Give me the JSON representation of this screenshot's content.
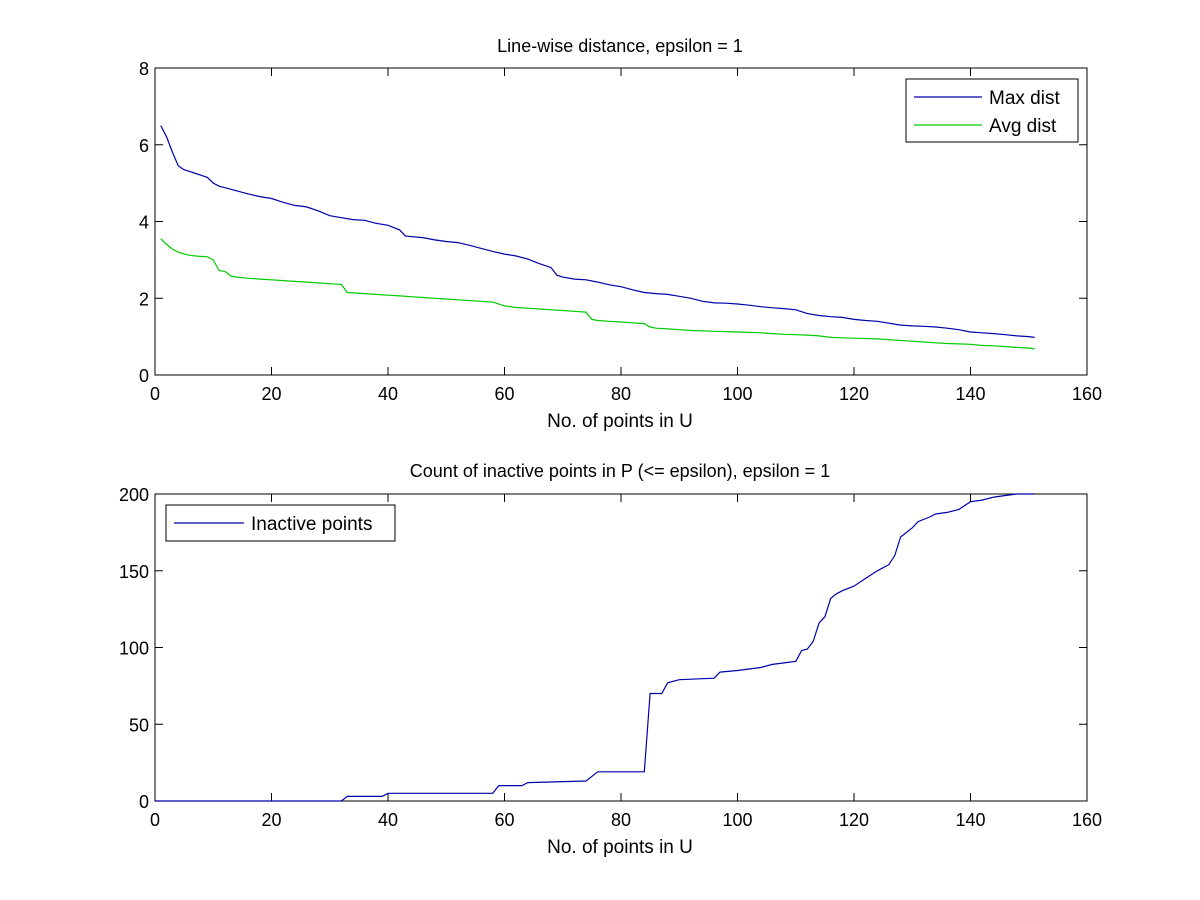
{
  "chart_data": [
    {
      "type": "line",
      "title": "Line-wise distance, epsilon = 1",
      "xlabel": "No. of points in U",
      "ylabel": "",
      "xlim": [
        0,
        160
      ],
      "ylim": [
        0,
        8
      ],
      "xticks": [
        "0",
        "20",
        "40",
        "60",
        "80",
        "100",
        "120",
        "140",
        "160"
      ],
      "yticks": [
        "0",
        "2",
        "4",
        "6",
        "8"
      ],
      "legend_position": "top-right",
      "grid": false,
      "series": [
        {
          "name": "Max dist",
          "color": "#0000aa",
          "points": [
            [
              1,
              6.5
            ],
            [
              2,
              6.2
            ],
            [
              3,
              5.8
            ],
            [
              4,
              5.45
            ],
            [
              5,
              5.35
            ],
            [
              6,
              5.3
            ],
            [
              7,
              5.25
            ],
            [
              8,
              5.2
            ],
            [
              9,
              5.15
            ],
            [
              10,
              5.0
            ],
            [
              11,
              4.92
            ],
            [
              12,
              4.88
            ],
            [
              14,
              4.8
            ],
            [
              16,
              4.72
            ],
            [
              18,
              4.65
            ],
            [
              20,
              4.6
            ],
            [
              22,
              4.5
            ],
            [
              24,
              4.42
            ],
            [
              26,
              4.38
            ],
            [
              28,
              4.28
            ],
            [
              30,
              4.15
            ],
            [
              32,
              4.1
            ],
            [
              34,
              4.05
            ],
            [
              36,
              4.03
            ],
            [
              38,
              3.95
            ],
            [
              40,
              3.9
            ],
            [
              42,
              3.78
            ],
            [
              43,
              3.62
            ],
            [
              46,
              3.58
            ],
            [
              48,
              3.52
            ],
            [
              50,
              3.48
            ],
            [
              52,
              3.45
            ],
            [
              54,
              3.38
            ],
            [
              56,
              3.3
            ],
            [
              58,
              3.22
            ],
            [
              60,
              3.15
            ],
            [
              62,
              3.1
            ],
            [
              64,
              3.02
            ],
            [
              66,
              2.9
            ],
            [
              68,
              2.8
            ],
            [
              69,
              2.6
            ],
            [
              70,
              2.55
            ],
            [
              72,
              2.5
            ],
            [
              74,
              2.48
            ],
            [
              76,
              2.42
            ],
            [
              78,
              2.35
            ],
            [
              80,
              2.3
            ],
            [
              82,
              2.22
            ],
            [
              84,
              2.15
            ],
            [
              86,
              2.12
            ],
            [
              88,
              2.1
            ],
            [
              90,
              2.05
            ],
            [
              92,
              2.0
            ],
            [
              94,
              1.92
            ],
            [
              96,
              1.88
            ],
            [
              98,
              1.87
            ],
            [
              100,
              1.85
            ],
            [
              102,
              1.82
            ],
            [
              104,
              1.78
            ],
            [
              106,
              1.75
            ],
            [
              108,
              1.73
            ],
            [
              110,
              1.7
            ],
            [
              112,
              1.6
            ],
            [
              114,
              1.55
            ],
            [
              116,
              1.52
            ],
            [
              118,
              1.5
            ],
            [
              120,
              1.45
            ],
            [
              122,
              1.42
            ],
            [
              124,
              1.4
            ],
            [
              126,
              1.35
            ],
            [
              128,
              1.3
            ],
            [
              130,
              1.28
            ],
            [
              132,
              1.27
            ],
            [
              134,
              1.25
            ],
            [
              136,
              1.22
            ],
            [
              138,
              1.18
            ],
            [
              140,
              1.12
            ],
            [
              142,
              1.1
            ],
            [
              144,
              1.08
            ],
            [
              146,
              1.05
            ],
            [
              148,
              1.02
            ],
            [
              150,
              1.0
            ],
            [
              151,
              0.98
            ]
          ]
        },
        {
          "name": "Avg dist",
          "color": "#00cc00",
          "points": [
            [
              1,
              3.55
            ],
            [
              2,
              3.4
            ],
            [
              3,
              3.28
            ],
            [
              4,
              3.2
            ],
            [
              5,
              3.15
            ],
            [
              6,
              3.12
            ],
            [
              7,
              3.1
            ],
            [
              9,
              3.08
            ],
            [
              10,
              3.0
            ],
            [
              11,
              2.72
            ],
            [
              12,
              2.7
            ],
            [
              13,
              2.58
            ],
            [
              14,
              2.55
            ],
            [
              16,
              2.52
            ],
            [
              18,
              2.5
            ],
            [
              20,
              2.48
            ],
            [
              22,
              2.46
            ],
            [
              24,
              2.44
            ],
            [
              26,
              2.42
            ],
            [
              28,
              2.4
            ],
            [
              30,
              2.38
            ],
            [
              32,
              2.36
            ],
            [
              33,
              2.15
            ],
            [
              34,
              2.14
            ],
            [
              36,
              2.12
            ],
            [
              38,
              2.1
            ],
            [
              40,
              2.08
            ],
            [
              42,
              2.06
            ],
            [
              44,
              2.04
            ],
            [
              46,
              2.02
            ],
            [
              48,
              2.0
            ],
            [
              50,
              1.98
            ],
            [
              52,
              1.96
            ],
            [
              54,
              1.94
            ],
            [
              56,
              1.92
            ],
            [
              58,
              1.9
            ],
            [
              60,
              1.8
            ],
            [
              62,
              1.76
            ],
            [
              64,
              1.74
            ],
            [
              66,
              1.72
            ],
            [
              68,
              1.7
            ],
            [
              70,
              1.68
            ],
            [
              72,
              1.66
            ],
            [
              74,
              1.64
            ],
            [
              75,
              1.45
            ],
            [
              76,
              1.42
            ],
            [
              78,
              1.4
            ],
            [
              80,
              1.38
            ],
            [
              82,
              1.36
            ],
            [
              84,
              1.34
            ],
            [
              85,
              1.25
            ],
            [
              86,
              1.22
            ],
            [
              88,
              1.2
            ],
            [
              90,
              1.18
            ],
            [
              92,
              1.16
            ],
            [
              94,
              1.15
            ],
            [
              96,
              1.14
            ],
            [
              98,
              1.13
            ],
            [
              100,
              1.12
            ],
            [
              102,
              1.11
            ],
            [
              104,
              1.1
            ],
            [
              106,
              1.08
            ],
            [
              108,
              1.06
            ],
            [
              110,
              1.05
            ],
            [
              112,
              1.04
            ],
            [
              114,
              1.02
            ],
            [
              116,
              0.98
            ],
            [
              118,
              0.97
            ],
            [
              120,
              0.96
            ],
            [
              122,
              0.95
            ],
            [
              124,
              0.94
            ],
            [
              126,
              0.92
            ],
            [
              128,
              0.9
            ],
            [
              130,
              0.88
            ],
            [
              132,
              0.86
            ],
            [
              134,
              0.84
            ],
            [
              136,
              0.82
            ],
            [
              138,
              0.81
            ],
            [
              140,
              0.8
            ],
            [
              142,
              0.77
            ],
            [
              144,
              0.76
            ],
            [
              146,
              0.74
            ],
            [
              148,
              0.72
            ],
            [
              150,
              0.7
            ],
            [
              151,
              0.68
            ]
          ]
        }
      ]
    },
    {
      "type": "line",
      "title": "Count of inactive points in P (<= epsilon), epsilon = 1",
      "xlabel": "No. of points in U",
      "ylabel": "",
      "xlim": [
        0,
        160
      ],
      "ylim": [
        0,
        200
      ],
      "xticks": [
        "0",
        "20",
        "40",
        "60",
        "80",
        "100",
        "120",
        "140",
        "160"
      ],
      "yticks": [
        "0",
        "50",
        "100",
        "150",
        "200"
      ],
      "legend_position": "top-left",
      "grid": false,
      "series": [
        {
          "name": "Inactive points",
          "color": "#0000aa",
          "points": [
            [
              0,
              0
            ],
            [
              32,
              0
            ],
            [
              33,
              3
            ],
            [
              39,
              3
            ],
            [
              40,
              5
            ],
            [
              58,
              5
            ],
            [
              59,
              10
            ],
            [
              63,
              10
            ],
            [
              64,
              12
            ],
            [
              74,
              13
            ],
            [
              76,
              19
            ],
            [
              84,
              19
            ],
            [
              85,
              70
            ],
            [
              87,
              70
            ],
            [
              88,
              77
            ],
            [
              90,
              79
            ],
            [
              96,
              80
            ],
            [
              97,
              84
            ],
            [
              100,
              85
            ],
            [
              102,
              86
            ],
            [
              104,
              87
            ],
            [
              106,
              89
            ],
            [
              108,
              90
            ],
            [
              110,
              91
            ],
            [
              111,
              98
            ],
            [
              112,
              99
            ],
            [
              113,
              104
            ],
            [
              114,
              116
            ],
            [
              115,
              120
            ],
            [
              116,
              132
            ],
            [
              117,
              135
            ],
            [
              118,
              137
            ],
            [
              120,
              140
            ],
            [
              122,
              145
            ],
            [
              124,
              150
            ],
            [
              126,
              154
            ],
            [
              127,
              160
            ],
            [
              128,
              172
            ],
            [
              130,
              178
            ],
            [
              131,
              182
            ],
            [
              133,
              185
            ],
            [
              134,
              187
            ],
            [
              136,
              188
            ],
            [
              138,
              190
            ],
            [
              140,
              195
            ],
            [
              142,
              196
            ],
            [
              144,
              198
            ],
            [
              146,
              199
            ],
            [
              148,
              200
            ],
            [
              151,
              200
            ]
          ]
        }
      ]
    }
  ]
}
